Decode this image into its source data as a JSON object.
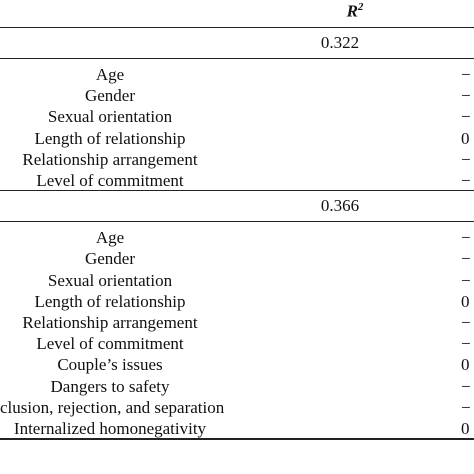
{
  "header": {
    "symbol": "R",
    "superscript": "2"
  },
  "blocks": [
    {
      "r2": "0.322",
      "rows": [
        [
          "Age",
          "−"
        ],
        [
          "Gender",
          "−"
        ],
        [
          "Sexual orientation",
          "−"
        ],
        [
          "Length of relationship",
          "0"
        ],
        [
          "Relationship arrangement",
          "−"
        ],
        [
          "Level of commitment",
          "−"
        ]
      ]
    },
    {
      "r2": "0.366",
      "rows": [
        [
          "Age",
          "−"
        ],
        [
          "Gender",
          "−"
        ],
        [
          "Sexual orientation",
          "−"
        ],
        [
          "Length of relationship",
          "0"
        ],
        [
          "Relationship arrangement",
          "−"
        ],
        [
          "Level of commitment",
          "−"
        ],
        [
          "Couple’s issues",
          "0"
        ],
        [
          "Dangers to safety",
          "−"
        ],
        [
          "clusion, rejection, and separation",
          "−"
        ],
        [
          "Internalized homonegativity",
          "0"
        ]
      ]
    }
  ]
}
